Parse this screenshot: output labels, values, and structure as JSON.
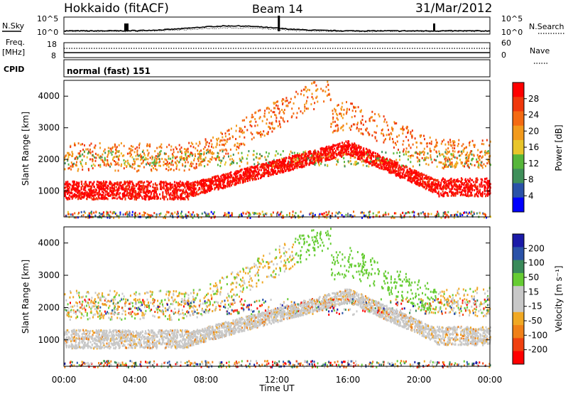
{
  "header": {
    "site": "Hokkaido (fitACF)",
    "beam": "Beam 14",
    "date": "31/Mar/2012"
  },
  "top_panels": {
    "nsky_label": "N.Sky",
    "nsearch_label": "N.Search",
    "noise_ticks_left": [
      "10^5",
      "10^0"
    ],
    "noise_ticks_right": [
      "10^5",
      "10^0"
    ],
    "freq_label": "Freq.",
    "freq_unit": "[MHz]",
    "freq_ticks": [
      "18",
      "8"
    ],
    "nave_label": "Nave",
    "nave_ticks": [
      "60",
      "0"
    ],
    "cpid_label": "CPID",
    "cpid_value": "normal (fast) 151"
  },
  "colors": {
    "power_scale": [
      "#0000ff",
      "#2a52a8",
      "#3f8f5a",
      "#56b63a",
      "#e8c52a",
      "#f29a1c",
      "#f46a12",
      "#f0380c",
      "#ff0000"
    ],
    "velocity_scale": [
      "#ff0000",
      "#f04010",
      "#f08018",
      "#f0a824",
      "#c8c8c8",
      "#c8c8c8",
      "#66cc33",
      "#3a8a5a",
      "#2a52a8",
      "#1a1aa8"
    ]
  },
  "chart_data": [
    {
      "type": "heatmap",
      "name": "power",
      "ylabel": "Slant Range [km]",
      "xlabel": "Time UT",
      "x_ticks": [
        "00:00",
        "04:00",
        "08:00",
        "12:00",
        "16:00",
        "20:00",
        "00:00"
      ],
      "y_ticks": [
        1000,
        2000,
        3000,
        4000
      ],
      "ylim": [
        180,
        4500
      ],
      "xlim_hours": [
        0,
        24
      ],
      "colorbar_label": "Power [dB]",
      "colorbar_ticks": [
        "4",
        "8",
        "12",
        "16",
        "20",
        "24",
        "28"
      ],
      "colorbar_range": [
        0,
        32
      ]
    },
    {
      "type": "heatmap",
      "name": "velocity",
      "ylabel": "Slant Range [km]",
      "xlabel": "Time UT",
      "x_ticks": [
        "00:00",
        "04:00",
        "08:00",
        "12:00",
        "16:00",
        "20:00",
        "00:00"
      ],
      "y_ticks": [
        1000,
        2000,
        3000,
        4000
      ],
      "ylim": [
        180,
        4500
      ],
      "xlim_hours": [
        0,
        24
      ],
      "colorbar_label": "Velocity [m s⁻¹]",
      "colorbar_ticks": [
        "200",
        "100",
        "50",
        "15",
        "-15",
        "-50",
        "-100",
        "-200"
      ],
      "colorbar_range": [
        -250,
        250
      ]
    }
  ],
  "axis": {
    "x_title": "Time UT",
    "x_ticks": [
      "00:00",
      "04:00",
      "08:00",
      "12:00",
      "16:00",
      "20:00",
      "00:00"
    ]
  }
}
